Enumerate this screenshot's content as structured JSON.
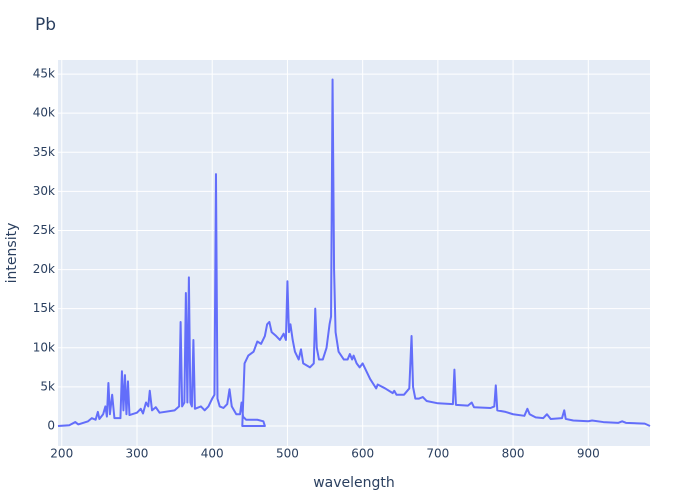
{
  "chart_data": {
    "type": "line",
    "title": "Pb",
    "x_label": "wavelength",
    "y_label": "intensity",
    "color": "#636efa",
    "grid": true,
    "xlim": [
      195,
      982
    ],
    "ylim": [
      -2560,
      46800
    ],
    "xticks": [
      200,
      300,
      400,
      500,
      600,
      700,
      800,
      900
    ],
    "yticks": [
      0,
      {
        "value": 5000,
        "label": "5k"
      },
      {
        "value": 10000,
        "label": "10k"
      },
      {
        "value": 15000,
        "label": "15k"
      },
      {
        "value": 20000,
        "label": "20k"
      },
      {
        "value": 25000,
        "label": "25k"
      },
      {
        "value": 30000,
        "label": "30k"
      },
      {
        "value": 35000,
        "label": "35k"
      },
      {
        "value": 40000,
        "label": "40k"
      },
      {
        "value": 45000,
        "label": "45k"
      }
    ],
    "x": [
      195,
      210,
      218,
      222,
      235,
      240,
      245,
      248,
      250,
      255,
      258,
      260,
      262,
      264,
      267,
      270,
      278,
      280,
      282,
      284,
      286,
      288,
      290,
      300,
      305,
      308,
      312,
      315,
      317,
      320,
      325,
      330,
      350,
      356,
      358,
      360,
      363,
      365,
      367,
      369,
      371,
      373,
      375,
      377,
      385,
      390,
      395,
      400,
      403,
      405,
      407,
      410,
      415,
      420,
      423,
      426,
      432,
      437,
      439,
      441,
      445,
      460,
      468,
      470,
      440,
      443,
      448,
      455,
      460,
      465,
      470,
      473,
      476,
      479,
      485,
      490,
      495,
      498,
      500,
      502,
      504,
      507,
      510,
      515,
      518,
      521,
      530,
      535,
      537,
      539,
      542,
      547,
      552,
      556,
      558,
      560,
      562,
      564,
      568,
      575,
      580,
      583,
      586,
      588,
      592,
      596,
      600,
      610,
      618,
      620,
      630,
      640,
      642,
      645,
      655,
      662,
      665,
      667,
      670,
      675,
      680,
      685,
      700,
      720,
      722,
      724,
      740,
      745,
      748,
      770,
      775,
      777,
      779,
      790,
      800,
      815,
      819,
      822,
      830,
      840,
      845,
      850,
      865,
      868,
      870,
      880,
      900,
      905,
      920,
      940,
      945,
      950,
      975,
      982
    ],
    "values": [
      0,
      100,
      500,
      200,
      600,
      1000,
      800,
      1800,
      900,
      1500,
      2500,
      1200,
      5500,
      1500,
      4000,
      1000,
      1000,
      7000,
      2000,
      6500,
      1500,
      5700,
      1400,
      1700,
      2200,
      1600,
      3000,
      2500,
      4500,
      2000,
      2400,
      1700,
      2000,
      2500,
      13300,
      2500,
      3000,
      17000,
      3000,
      19000,
      3000,
      2500,
      11000,
      2200,
      2500,
      2000,
      2500,
      3500,
      4000,
      32200,
      3500,
      2500,
      2300,
      2800,
      4700,
      2500,
      1500,
      1500,
      3000,
      1200,
      800,
      800,
      600,
      0,
      0,
      8000,
      9000,
      9500,
      10800,
      10500,
      11500,
      13000,
      13300,
      12000,
      11500,
      11000,
      11800,
      11000,
      18500,
      12000,
      13000,
      11000,
      9500,
      8500,
      9800,
      8000,
      7500,
      8000,
      15000,
      10000,
      8500,
      8500,
      10000,
      13000,
      14000,
      44300,
      20000,
      12000,
      9500,
      8500,
      8500,
      9200,
      8500,
      9000,
      8000,
      7500,
      8000,
      6000,
      4800,
      5300,
      4800,
      4200,
      4500,
      4000,
      4000,
      4800,
      11500,
      5000,
      3500,
      3500,
      3700,
      3200,
      2900,
      2800,
      7200,
      2700,
      2600,
      3000,
      2400,
      2300,
      2500,
      5200,
      2000,
      1800,
      1500,
      1300,
      2200,
      1500,
      1100,
      1000,
      1500,
      900,
      1000,
      2000,
      900,
      700,
      600,
      700,
      500,
      400,
      600,
      400,
      300,
      0
    ]
  }
}
